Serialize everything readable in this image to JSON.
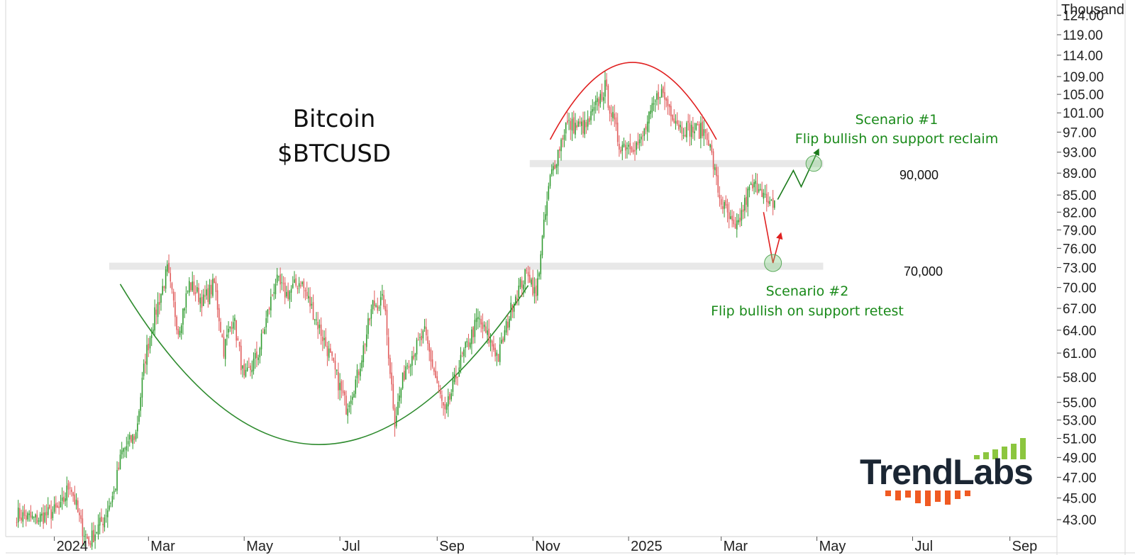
{
  "chart_data": {
    "type": "candlestick",
    "title": "Bitcoin",
    "subtitle": "$BTCUSD",
    "y_unit_label": "Thousand",
    "y_scale": "log",
    "ylim": [
      41.5,
      128
    ],
    "y_ticks": [
      43,
      45,
      47,
      49,
      51,
      53,
      55,
      58,
      61,
      64,
      67,
      70,
      73,
      76,
      79,
      82,
      85,
      89,
      93,
      97,
      101,
      105,
      109,
      114,
      119,
      124
    ],
    "y_tick_labels": [
      "43.00",
      "45.00",
      "47.00",
      "49.00",
      "51.00",
      "53.00",
      "55.00",
      "58.00",
      "61.00",
      "64.00",
      "67.00",
      "70.00",
      "73.00",
      "76.00",
      "79.00",
      "82.00",
      "85.00",
      "89.00",
      "93.00",
      "97.00",
      "101.00",
      "105.00",
      "109.00",
      "114.00",
      "119.00",
      "124.00"
    ],
    "x_range": [
      "2023-12-01",
      "2025-10-01"
    ],
    "x_ticks": [
      {
        "date": "2024-01-01",
        "label": "2024"
      },
      {
        "date": "2024-03-01",
        "label": "Mar"
      },
      {
        "date": "2024-05-01",
        "label": "May"
      },
      {
        "date": "2024-07-01",
        "label": "Jul"
      },
      {
        "date": "2024-09-01",
        "label": "Sep"
      },
      {
        "date": "2024-11-01",
        "label": "Nov"
      },
      {
        "date": "2025-01-01",
        "label": "2025"
      },
      {
        "date": "2025-03-01",
        "label": "Mar"
      },
      {
        "date": "2025-05-01",
        "label": "May"
      },
      {
        "date": "2025-07-01",
        "label": "Jul"
      },
      {
        "date": "2025-09-01",
        "label": "Sep"
      }
    ],
    "price_path": [
      {
        "date": "2023-12-08",
        "close": 43.5
      },
      {
        "date": "2023-12-20",
        "close": 43.0
      },
      {
        "date": "2024-01-05",
        "close": 44.0
      },
      {
        "date": "2024-01-11",
        "close": 46.5
      },
      {
        "date": "2024-01-18",
        "close": 42.5
      },
      {
        "date": "2024-01-23",
        "close": 41.0
      },
      {
        "date": "2024-02-01",
        "close": 43.0
      },
      {
        "date": "2024-02-08",
        "close": 45.5
      },
      {
        "date": "2024-02-13",
        "close": 49.5
      },
      {
        "date": "2024-02-22",
        "close": 51.5
      },
      {
        "date": "2024-02-28",
        "close": 60.5
      },
      {
        "date": "2024-03-05",
        "close": 66.0
      },
      {
        "date": "2024-03-13",
        "close": 72.5
      },
      {
        "date": "2024-03-20",
        "close": 64.0
      },
      {
        "date": "2024-03-27",
        "close": 70.5
      },
      {
        "date": "2024-04-05",
        "close": 68.0
      },
      {
        "date": "2024-04-12",
        "close": 70.5
      },
      {
        "date": "2024-04-18",
        "close": 61.5
      },
      {
        "date": "2024-04-24",
        "close": 66.0
      },
      {
        "date": "2024-05-01",
        "close": 57.5
      },
      {
        "date": "2024-05-10",
        "close": 61.0
      },
      {
        "date": "2024-05-21",
        "close": 71.0
      },
      {
        "date": "2024-05-28",
        "close": 69.0
      },
      {
        "date": "2024-06-06",
        "close": 71.0
      },
      {
        "date": "2024-06-14",
        "close": 66.5
      },
      {
        "date": "2024-06-24",
        "close": 61.0
      },
      {
        "date": "2024-07-05",
        "close": 54.5
      },
      {
        "date": "2024-07-12",
        "close": 58.0
      },
      {
        "date": "2024-07-22",
        "close": 67.5
      },
      {
        "date": "2024-07-29",
        "close": 68.0
      },
      {
        "date": "2024-08-05",
        "close": 53.0
      },
      {
        "date": "2024-08-12",
        "close": 59.5
      },
      {
        "date": "2024-08-24",
        "close": 63.5
      },
      {
        "date": "2024-09-06",
        "close": 53.5
      },
      {
        "date": "2024-09-15",
        "close": 59.5
      },
      {
        "date": "2024-09-27",
        "close": 65.5
      },
      {
        "date": "2024-10-10",
        "close": 60.5
      },
      {
        "date": "2024-10-20",
        "close": 68.5
      },
      {
        "date": "2024-10-29",
        "close": 72.5
      },
      {
        "date": "2024-11-03",
        "close": 68.5
      },
      {
        "date": "2024-11-06",
        "close": 75.5
      },
      {
        "date": "2024-11-12",
        "close": 88.0
      },
      {
        "date": "2024-11-22",
        "close": 98.5
      },
      {
        "date": "2024-12-05",
        "close": 98.0
      },
      {
        "date": "2024-12-17",
        "close": 106.5
      },
      {
        "date": "2024-12-26",
        "close": 94.5
      },
      {
        "date": "2025-01-08",
        "close": 94.5
      },
      {
        "date": "2025-01-21",
        "close": 106.0
      },
      {
        "date": "2025-02-03",
        "close": 98.0
      },
      {
        "date": "2025-02-20",
        "close": 97.0
      },
      {
        "date": "2025-02-28",
        "close": 84.5
      },
      {
        "date": "2025-03-10",
        "close": 78.5
      },
      {
        "date": "2025-03-19",
        "close": 86.0
      },
      {
        "date": "2025-03-26",
        "close": 87.0
      },
      {
        "date": "2025-03-31",
        "close": 82.5
      },
      {
        "date": "2025-04-04",
        "close": 84.0
      }
    ],
    "levels": [
      {
        "label": "90,000",
        "value": 90.8,
        "from": "2024-10-30",
        "to": "2025-05-05"
      },
      {
        "label": "70,000",
        "value": 73.2,
        "from": "2024-02-05",
        "to": "2025-05-05"
      }
    ],
    "scenarios": [
      {
        "name": "Scenario #1",
        "description": "Flip bullish on support reclaim",
        "color": "#1a8a1a"
      },
      {
        "name": "Scenario #2",
        "description": "Flip bullish on support retest",
        "color": "#1a8a1a"
      }
    ],
    "scenario1_path": [
      {
        "date": "2025-04-06",
        "value": 84.2
      },
      {
        "date": "2025-04-16",
        "value": 89.5
      },
      {
        "date": "2025-04-21",
        "value": 86.5
      },
      {
        "date": "2025-05-02",
        "value": 93.5
      }
    ],
    "scenario2_path": [
      {
        "date": "2025-03-28",
        "value": 82.0
      },
      {
        "date": "2025-04-03",
        "value": 73.7
      },
      {
        "date": "2025-04-08",
        "value": 78.4
      }
    ],
    "pattern_arcs": [
      {
        "type": "cup",
        "color": "#2e8b2e"
      },
      {
        "type": "dome",
        "color": "#e02020"
      }
    ],
    "colors": {
      "up": "#2e9a2e",
      "down": "#e05a5a",
      "level": "#e8e8e8",
      "grid": "#e0e0e0"
    }
  },
  "logo": {
    "text": "TrendLabs",
    "color": "#1b2633",
    "bar_green": "#8cc63f",
    "bar_orange": "#f05a22"
  }
}
